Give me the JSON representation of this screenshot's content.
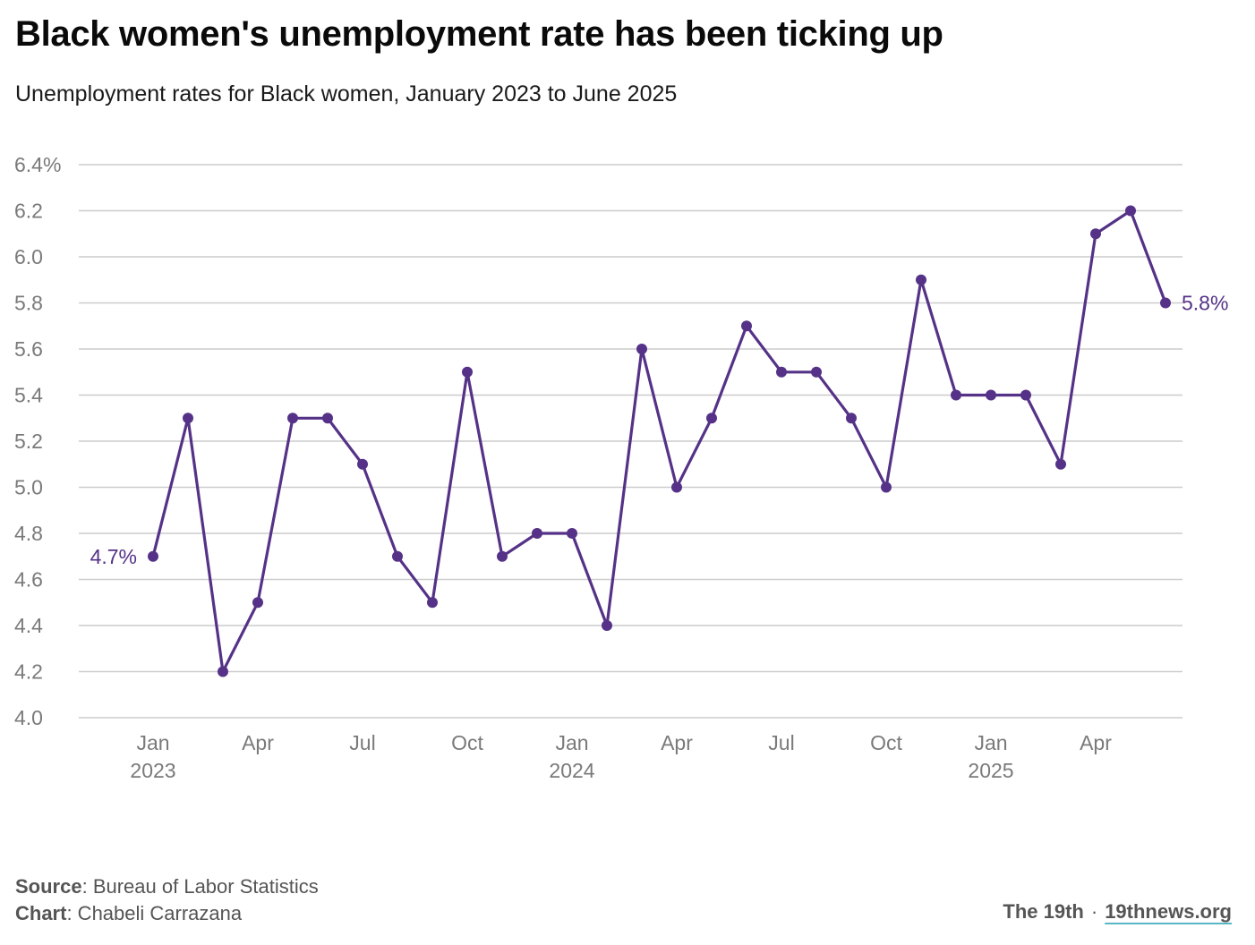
{
  "header": {
    "title": "Black women's unemployment rate has been ticking up",
    "subtitle": "Unemployment rates for Black women, January 2023 to June 2025"
  },
  "footer": {
    "source_label": "Source",
    "source_text": ": Bureau of Labor Statistics",
    "chart_label": "Chart",
    "chart_text": ": Chabeli Carrazana",
    "brand": "The 19th",
    "separator": "·",
    "site": "19thnews.org"
  },
  "colors": {
    "series": "#553287",
    "grid": "#cccccc",
    "tick_text": "#7a7a7a",
    "site_underline": "#58b7c4"
  },
  "chart_data": {
    "type": "line",
    "title": "Black women's unemployment rate has been ticking up",
    "subtitle": "Unemployment rates for Black women, January 2023 to June 2025",
    "ylim": [
      4.0,
      6.4
    ],
    "y_ticks": [
      "6.4%",
      "6.2",
      "6.0",
      "5.8",
      "5.6",
      "5.4",
      "5.2",
      "5.0",
      "4.8",
      "4.6",
      "4.4",
      "4.2",
      "4.0"
    ],
    "y_tick_values": [
      6.4,
      6.2,
      6.0,
      5.8,
      5.6,
      5.4,
      5.2,
      5.0,
      4.8,
      4.6,
      4.4,
      4.2,
      4.0
    ],
    "x_ticks": [
      {
        "month_index": 0,
        "label": "Jan",
        "year": "2023"
      },
      {
        "month_index": 3,
        "label": "Apr",
        "year": ""
      },
      {
        "month_index": 6,
        "label": "Jul",
        "year": ""
      },
      {
        "month_index": 9,
        "label": "Oct",
        "year": ""
      },
      {
        "month_index": 12,
        "label": "Jan",
        "year": "2024"
      },
      {
        "month_index": 15,
        "label": "Apr",
        "year": ""
      },
      {
        "month_index": 18,
        "label": "Jul",
        "year": ""
      },
      {
        "month_index": 21,
        "label": "Oct",
        "year": ""
      },
      {
        "month_index": 24,
        "label": "Jan",
        "year": "2025"
      },
      {
        "month_index": 27,
        "label": "Apr",
        "year": ""
      }
    ],
    "grid": true,
    "series": [
      {
        "x": [
          "2023-01",
          "2023-02",
          "2023-03",
          "2023-04",
          "2023-05",
          "2023-06",
          "2023-07",
          "2023-08",
          "2023-09",
          "2023-10",
          "2023-11",
          "2023-12",
          "2024-01",
          "2024-02",
          "2024-03",
          "2024-04",
          "2024-05",
          "2024-06",
          "2024-07",
          "2024-08",
          "2024-09",
          "2024-10",
          "2024-11",
          "2024-12",
          "2025-01",
          "2025-02",
          "2025-03",
          "2025-04",
          "2025-05",
          "2025-06"
        ],
        "values": [
          4.7,
          5.3,
          4.2,
          4.5,
          5.3,
          5.3,
          5.1,
          4.7,
          4.5,
          5.5,
          4.7,
          4.8,
          4.8,
          4.4,
          5.6,
          5.0,
          5.3,
          5.7,
          5.5,
          5.5,
          5.3,
          5.0,
          5.9,
          5.4,
          5.4,
          5.4,
          5.1,
          6.1,
          6.2,
          5.8
        ]
      }
    ],
    "annotations": [
      {
        "index": 0,
        "text": "4.7%",
        "side": "left"
      },
      {
        "index": 29,
        "text": "5.8%",
        "side": "right"
      }
    ]
  }
}
